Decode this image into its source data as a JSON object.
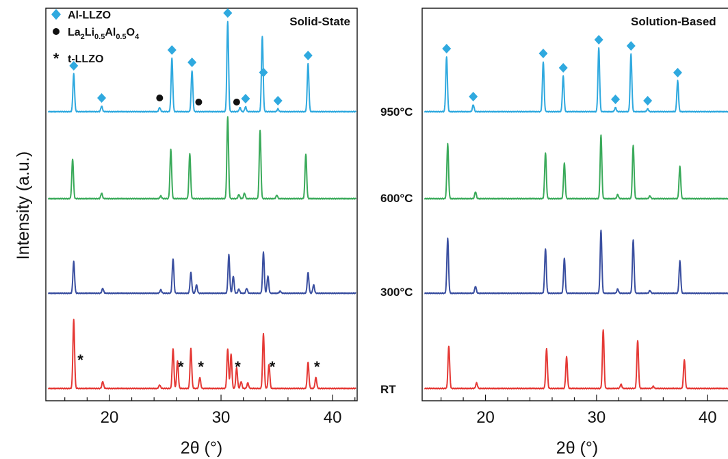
{
  "colors": {
    "RT": "#e53935",
    "300°C": "#3a4fa0",
    "600°C": "#3aaa5a",
    "950°C": "#2fa9df",
    "al_llzo_marker": "#2fa9df",
    "phase_marker": "#111111"
  },
  "ylabel": "Intensity (a.u.)",
  "temperature_labels": [
    "950°C",
    "600°C",
    "300°C",
    "RT"
  ],
  "legend": [
    {
      "symbol": "diamond",
      "label": "Al-LLZO"
    },
    {
      "symbol": "circle",
      "label_main": "La",
      "sub1": "2",
      "label_b": "Li",
      "sub2": "0.5",
      "label_c": "Al",
      "sub3": "0.5",
      "label_d": "O",
      "sub4": "4"
    },
    {
      "symbol": "asterisk",
      "label": "t-LLZO"
    }
  ],
  "chart_data": [
    {
      "type": "line",
      "title": "Solid-State",
      "xlabel": "2θ (°)",
      "ylabel": "Intensity (a.u.)",
      "xlim": [
        14.3,
        42.2
      ],
      "xticks": [
        20,
        30,
        40
      ],
      "grid": false,
      "legend_position": "top-left",
      "series": [
        {
          "name": "RT",
          "peaks": [
            [
              16.8,
              1.0
            ],
            [
              19.4,
              0.1
            ],
            [
              24.5,
              0.05
            ],
            [
              25.7,
              0.58
            ],
            [
              26.1,
              0.4
            ],
            [
              27.3,
              0.58
            ],
            [
              28.1,
              0.16
            ],
            [
              30.6,
              0.58
            ],
            [
              30.9,
              0.5
            ],
            [
              31.4,
              0.3
            ],
            [
              31.8,
              0.1
            ],
            [
              32.4,
              0.08
            ],
            [
              33.8,
              0.8
            ],
            [
              34.3,
              0.35
            ],
            [
              37.8,
              0.38
            ],
            [
              38.5,
              0.16
            ]
          ]
        },
        {
          "name": "300°C",
          "peaks": [
            [
              16.8,
              0.46
            ],
            [
              19.4,
              0.07
            ],
            [
              24.6,
              0.05
            ],
            [
              25.7,
              0.5
            ],
            [
              27.3,
              0.3
            ],
            [
              27.8,
              0.12
            ],
            [
              30.7,
              0.56
            ],
            [
              31.1,
              0.25
            ],
            [
              31.6,
              0.06
            ],
            [
              32.3,
              0.07
            ],
            [
              33.8,
              0.6
            ],
            [
              34.2,
              0.25
            ],
            [
              35.3,
              0.03
            ],
            [
              37.8,
              0.3
            ],
            [
              38.3,
              0.12
            ]
          ]
        },
        {
          "name": "600°C",
          "peaks": [
            [
              16.7,
              0.58
            ],
            [
              19.3,
              0.08
            ],
            [
              24.6,
              0.04
            ],
            [
              25.5,
              0.72
            ],
            [
              27.2,
              0.66
            ],
            [
              30.6,
              1.2
            ],
            [
              31.6,
              0.06
            ],
            [
              32.1,
              0.08
            ],
            [
              33.5,
              1.0
            ],
            [
              35.0,
              0.05
            ],
            [
              37.6,
              0.65
            ]
          ]
        },
        {
          "name": "950°C",
          "peaks": [
            [
              16.8,
              0.55
            ],
            [
              19.3,
              0.08
            ],
            [
              24.5,
              0.06
            ],
            [
              25.6,
              0.78
            ],
            [
              27.4,
              0.6
            ],
            [
              30.6,
              1.32
            ],
            [
              31.7,
              0.06
            ],
            [
              32.2,
              0.07
            ],
            [
              33.7,
              1.1
            ],
            [
              35.1,
              0.04
            ],
            [
              37.8,
              0.7
            ]
          ]
        }
      ],
      "markers": {
        "950°C": [
          {
            "type": "diamond",
            "x": 16.8
          },
          {
            "type": "diamond",
            "x": 19.3
          },
          {
            "type": "circle",
            "x": 24.5
          },
          {
            "type": "diamond",
            "x": 25.6
          },
          {
            "type": "diamond",
            "x": 27.4
          },
          {
            "type": "circle",
            "x": 28.0
          },
          {
            "type": "diamond",
            "x": 30.6
          },
          {
            "type": "circle",
            "x": 31.4
          },
          {
            "type": "diamond",
            "x": 32.2
          },
          {
            "type": "diamond",
            "x": 33.8
          },
          {
            "type": "diamond",
            "x": 35.1
          },
          {
            "type": "diamond",
            "x": 37.8
          }
        ],
        "RT": [
          {
            "type": "asterisk",
            "x": 17.4
          },
          {
            "type": "asterisk",
            "x": 26.4
          },
          {
            "type": "asterisk",
            "x": 28.2
          },
          {
            "type": "asterisk",
            "x": 31.5
          },
          {
            "type": "asterisk",
            "x": 34.6
          },
          {
            "type": "asterisk",
            "x": 38.6
          }
        ]
      }
    },
    {
      "type": "line",
      "title": "Solution-Based",
      "xlabel": "2θ (°)",
      "ylabel": "Intensity (a.u.)",
      "xlim": [
        14.3,
        42.2
      ],
      "xticks": [
        20,
        30,
        40
      ],
      "grid": false,
      "series": [
        {
          "name": "RT",
          "peaks": [
            [
              16.7,
              0.62
            ],
            [
              19.2,
              0.08
            ],
            [
              25.5,
              0.58
            ],
            [
              27.3,
              0.46
            ],
            [
              30.6,
              0.86
            ],
            [
              32.2,
              0.06
            ],
            [
              33.7,
              0.7
            ],
            [
              35.1,
              0.03
            ],
            [
              37.9,
              0.42
            ]
          ]
        },
        {
          "name": "300°C",
          "peaks": [
            [
              16.6,
              0.8
            ],
            [
              19.1,
              0.1
            ],
            [
              25.4,
              0.65
            ],
            [
              27.1,
              0.51
            ],
            [
              30.4,
              0.92
            ],
            [
              31.9,
              0.06
            ],
            [
              33.3,
              0.78
            ],
            [
              34.8,
              0.04
            ],
            [
              37.5,
              0.47
            ]
          ]
        },
        {
          "name": "600°C",
          "peaks": [
            [
              16.6,
              0.8
            ],
            [
              19.1,
              0.1
            ],
            [
              25.4,
              0.67
            ],
            [
              27.1,
              0.52
            ],
            [
              30.4,
              0.93
            ],
            [
              31.9,
              0.06
            ],
            [
              33.3,
              0.78
            ],
            [
              34.8,
              0.04
            ],
            [
              37.5,
              0.47
            ]
          ]
        },
        {
          "name": "950°C",
          "peaks": [
            [
              16.5,
              0.8
            ],
            [
              18.9,
              0.1
            ],
            [
              25.2,
              0.73
            ],
            [
              27.0,
              0.52
            ],
            [
              30.2,
              0.93
            ],
            [
              31.7,
              0.06
            ],
            [
              33.1,
              0.84
            ],
            [
              34.6,
              0.04
            ],
            [
              37.3,
              0.45
            ]
          ]
        }
      ],
      "markers": {
        "950°C": [
          {
            "type": "diamond",
            "x": 16.5
          },
          {
            "type": "diamond",
            "x": 18.9
          },
          {
            "type": "diamond",
            "x": 25.2
          },
          {
            "type": "diamond",
            "x": 27.0
          },
          {
            "type": "diamond",
            "x": 30.2
          },
          {
            "type": "diamond",
            "x": 31.7
          },
          {
            "type": "diamond",
            "x": 33.1
          },
          {
            "type": "diamond",
            "x": 34.6
          },
          {
            "type": "diamond",
            "x": 37.3
          }
        ]
      }
    }
  ]
}
